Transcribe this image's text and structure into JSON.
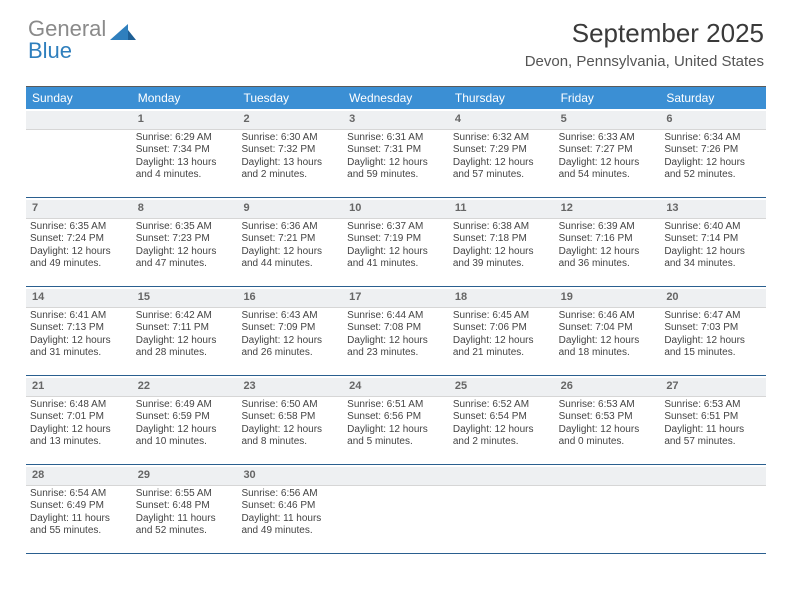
{
  "logo": {
    "line1": "General",
    "line2": "Blue",
    "icon": "triangle-icon",
    "gray": "#8a8a8a",
    "blue": "#2f7fbd"
  },
  "title": "September 2025",
  "location": "Devon, Pennsylvania, United States",
  "header_bg": "#3b8fd4",
  "week_border": "#2a5f8f",
  "daynum_bg": "#eef0f2",
  "dow": [
    "Sunday",
    "Monday",
    "Tuesday",
    "Wednesday",
    "Thursday",
    "Friday",
    "Saturday"
  ],
  "weeks": [
    [
      {
        "n": "",
        "sr": "",
        "ss": "",
        "dl": ""
      },
      {
        "n": "1",
        "sr": "Sunrise: 6:29 AM",
        "ss": "Sunset: 7:34 PM",
        "dl": "Daylight: 13 hours and 4 minutes."
      },
      {
        "n": "2",
        "sr": "Sunrise: 6:30 AM",
        "ss": "Sunset: 7:32 PM",
        "dl": "Daylight: 13 hours and 2 minutes."
      },
      {
        "n": "3",
        "sr": "Sunrise: 6:31 AM",
        "ss": "Sunset: 7:31 PM",
        "dl": "Daylight: 12 hours and 59 minutes."
      },
      {
        "n": "4",
        "sr": "Sunrise: 6:32 AM",
        "ss": "Sunset: 7:29 PM",
        "dl": "Daylight: 12 hours and 57 minutes."
      },
      {
        "n": "5",
        "sr": "Sunrise: 6:33 AM",
        "ss": "Sunset: 7:27 PM",
        "dl": "Daylight: 12 hours and 54 minutes."
      },
      {
        "n": "6",
        "sr": "Sunrise: 6:34 AM",
        "ss": "Sunset: 7:26 PM",
        "dl": "Daylight: 12 hours and 52 minutes."
      }
    ],
    [
      {
        "n": "7",
        "sr": "Sunrise: 6:35 AM",
        "ss": "Sunset: 7:24 PM",
        "dl": "Daylight: 12 hours and 49 minutes."
      },
      {
        "n": "8",
        "sr": "Sunrise: 6:35 AM",
        "ss": "Sunset: 7:23 PM",
        "dl": "Daylight: 12 hours and 47 minutes."
      },
      {
        "n": "9",
        "sr": "Sunrise: 6:36 AM",
        "ss": "Sunset: 7:21 PM",
        "dl": "Daylight: 12 hours and 44 minutes."
      },
      {
        "n": "10",
        "sr": "Sunrise: 6:37 AM",
        "ss": "Sunset: 7:19 PM",
        "dl": "Daylight: 12 hours and 41 minutes."
      },
      {
        "n": "11",
        "sr": "Sunrise: 6:38 AM",
        "ss": "Sunset: 7:18 PM",
        "dl": "Daylight: 12 hours and 39 minutes."
      },
      {
        "n": "12",
        "sr": "Sunrise: 6:39 AM",
        "ss": "Sunset: 7:16 PM",
        "dl": "Daylight: 12 hours and 36 minutes."
      },
      {
        "n": "13",
        "sr": "Sunrise: 6:40 AM",
        "ss": "Sunset: 7:14 PM",
        "dl": "Daylight: 12 hours and 34 minutes."
      }
    ],
    [
      {
        "n": "14",
        "sr": "Sunrise: 6:41 AM",
        "ss": "Sunset: 7:13 PM",
        "dl": "Daylight: 12 hours and 31 minutes."
      },
      {
        "n": "15",
        "sr": "Sunrise: 6:42 AM",
        "ss": "Sunset: 7:11 PM",
        "dl": "Daylight: 12 hours and 28 minutes."
      },
      {
        "n": "16",
        "sr": "Sunrise: 6:43 AM",
        "ss": "Sunset: 7:09 PM",
        "dl": "Daylight: 12 hours and 26 minutes."
      },
      {
        "n": "17",
        "sr": "Sunrise: 6:44 AM",
        "ss": "Sunset: 7:08 PM",
        "dl": "Daylight: 12 hours and 23 minutes."
      },
      {
        "n": "18",
        "sr": "Sunrise: 6:45 AM",
        "ss": "Sunset: 7:06 PM",
        "dl": "Daylight: 12 hours and 21 minutes."
      },
      {
        "n": "19",
        "sr": "Sunrise: 6:46 AM",
        "ss": "Sunset: 7:04 PM",
        "dl": "Daylight: 12 hours and 18 minutes."
      },
      {
        "n": "20",
        "sr": "Sunrise: 6:47 AM",
        "ss": "Sunset: 7:03 PM",
        "dl": "Daylight: 12 hours and 15 minutes."
      }
    ],
    [
      {
        "n": "21",
        "sr": "Sunrise: 6:48 AM",
        "ss": "Sunset: 7:01 PM",
        "dl": "Daylight: 12 hours and 13 minutes."
      },
      {
        "n": "22",
        "sr": "Sunrise: 6:49 AM",
        "ss": "Sunset: 6:59 PM",
        "dl": "Daylight: 12 hours and 10 minutes."
      },
      {
        "n": "23",
        "sr": "Sunrise: 6:50 AM",
        "ss": "Sunset: 6:58 PM",
        "dl": "Daylight: 12 hours and 8 minutes."
      },
      {
        "n": "24",
        "sr": "Sunrise: 6:51 AM",
        "ss": "Sunset: 6:56 PM",
        "dl": "Daylight: 12 hours and 5 minutes."
      },
      {
        "n": "25",
        "sr": "Sunrise: 6:52 AM",
        "ss": "Sunset: 6:54 PM",
        "dl": "Daylight: 12 hours and 2 minutes."
      },
      {
        "n": "26",
        "sr": "Sunrise: 6:53 AM",
        "ss": "Sunset: 6:53 PM",
        "dl": "Daylight: 12 hours and 0 minutes."
      },
      {
        "n": "27",
        "sr": "Sunrise: 6:53 AM",
        "ss": "Sunset: 6:51 PM",
        "dl": "Daylight: 11 hours and 57 minutes."
      }
    ],
    [
      {
        "n": "28",
        "sr": "Sunrise: 6:54 AM",
        "ss": "Sunset: 6:49 PM",
        "dl": "Daylight: 11 hours and 55 minutes."
      },
      {
        "n": "29",
        "sr": "Sunrise: 6:55 AM",
        "ss": "Sunset: 6:48 PM",
        "dl": "Daylight: 11 hours and 52 minutes."
      },
      {
        "n": "30",
        "sr": "Sunrise: 6:56 AM",
        "ss": "Sunset: 6:46 PM",
        "dl": "Daylight: 11 hours and 49 minutes."
      },
      {
        "n": "",
        "sr": "",
        "ss": "",
        "dl": ""
      },
      {
        "n": "",
        "sr": "",
        "ss": "",
        "dl": ""
      },
      {
        "n": "",
        "sr": "",
        "ss": "",
        "dl": ""
      },
      {
        "n": "",
        "sr": "",
        "ss": "",
        "dl": ""
      }
    ]
  ]
}
